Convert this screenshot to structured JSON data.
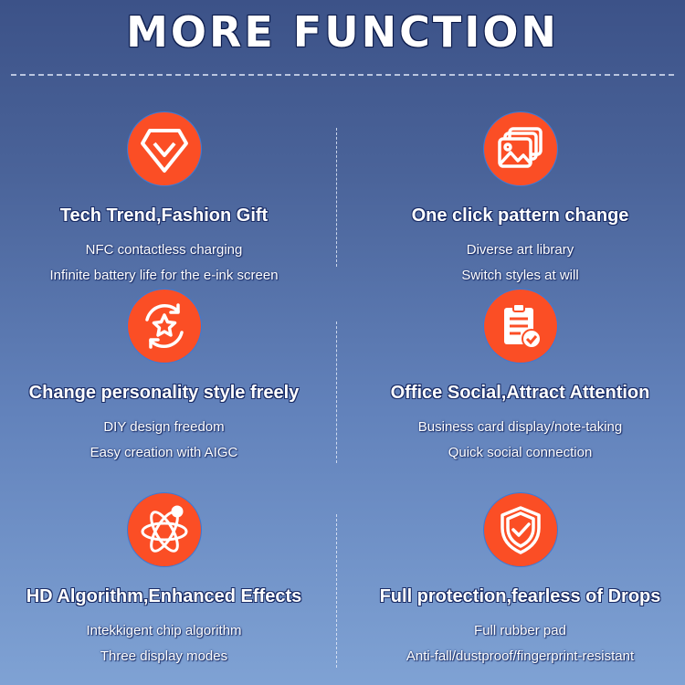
{
  "title": "MORE FUNCTION",
  "accent_color": "#fb4e25",
  "features": [
    {
      "icon": "diamond-check-icon",
      "heading": "Tech Trend,Fashion Gift",
      "lines": [
        "NFC contactless charging",
        "Infinite battery life for the e-ink screen"
      ]
    },
    {
      "icon": "image-gallery-icon",
      "heading": "One click pattern change",
      "lines": [
        "Diverse art library",
        "Switch styles at will"
      ]
    },
    {
      "icon": "refresh-star-icon",
      "heading": "Change personality style freely",
      "lines": [
        "DIY design freedom",
        "Easy creation with AIGC"
      ]
    },
    {
      "icon": "clipboard-check-icon",
      "heading": "Office Social,Attract Attention",
      "lines": [
        "Business card display/note-taking",
        "Quick social connection"
      ]
    },
    {
      "icon": "atom-icon",
      "heading": "HD Algorithm,Enhanced Effects",
      "lines": [
        "Intekkigent chip algorithm",
        "Three display modes"
      ]
    },
    {
      "icon": "shield-check-icon",
      "heading": "Full protection,fearless of Drops",
      "lines": [
        "Full rubber pad",
        "Anti-fall/dustproof/fingerprint-resistant"
      ]
    }
  ]
}
